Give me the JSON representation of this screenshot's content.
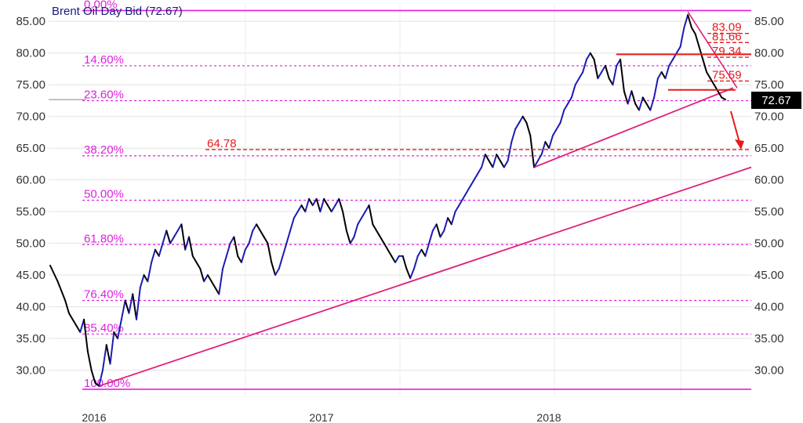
{
  "chart_data": {
    "type": "line",
    "title": "Brent Oil Day Bid (72.67)",
    "ylim": [
      26,
      87.5
    ],
    "y_ticks": [
      "85.00",
      "80.00",
      "75.00",
      "70.00",
      "65.00",
      "60.00",
      "55.00",
      "50.00",
      "45.00",
      "40.00",
      "35.00",
      "30.00"
    ],
    "y_tick_values": [
      85,
      80,
      75,
      70,
      65,
      60,
      55,
      50,
      45,
      40,
      35,
      30
    ],
    "x_labels": [
      "2016",
      "2017",
      "2018"
    ],
    "last_price": "72.67",
    "series": [
      {
        "points": [
          [
            0,
            46.5
          ],
          [
            2,
            44
          ],
          [
            4,
            41
          ],
          [
            5,
            39
          ],
          [
            6,
            38
          ],
          [
            7,
            37
          ],
          [
            8,
            36
          ],
          [
            9,
            38
          ],
          [
            10,
            33
          ],
          [
            11,
            30
          ],
          [
            12,
            28
          ],
          [
            13,
            27.5
          ],
          [
            14,
            30
          ],
          [
            15,
            34
          ],
          [
            16,
            31
          ],
          [
            17,
            36
          ],
          [
            18,
            35
          ],
          [
            19,
            38
          ],
          [
            20,
            41
          ],
          [
            21,
            39
          ],
          [
            22,
            42
          ],
          [
            23,
            38
          ],
          [
            24,
            43
          ],
          [
            25,
            45
          ],
          [
            26,
            44
          ],
          [
            27,
            47
          ],
          [
            28,
            49
          ],
          [
            29,
            48
          ],
          [
            30,
            50
          ],
          [
            31,
            52
          ],
          [
            32,
            50
          ],
          [
            33,
            51
          ],
          [
            34,
            52
          ],
          [
            35,
            53
          ],
          [
            36,
            49
          ],
          [
            37,
            51
          ],
          [
            38,
            48
          ],
          [
            39,
            47
          ],
          [
            40,
            46
          ],
          [
            41,
            44
          ],
          [
            42,
            45
          ],
          [
            43,
            44
          ],
          [
            44,
            43
          ],
          [
            45,
            42
          ],
          [
            46,
            46
          ],
          [
            47,
            48
          ],
          [
            48,
            50
          ],
          [
            49,
            51
          ],
          [
            50,
            48
          ],
          [
            51,
            47
          ],
          [
            52,
            49
          ],
          [
            53,
            50
          ],
          [
            54,
            52
          ],
          [
            55,
            53
          ],
          [
            56,
            52
          ],
          [
            57,
            51
          ],
          [
            58,
            50
          ],
          [
            59,
            47
          ],
          [
            60,
            45
          ],
          [
            61,
            46
          ],
          [
            62,
            48
          ],
          [
            63,
            50
          ],
          [
            64,
            52
          ],
          [
            65,
            54
          ],
          [
            66,
            55
          ],
          [
            67,
            56
          ],
          [
            68,
            55
          ],
          [
            69,
            57
          ],
          [
            70,
            56
          ],
          [
            71,
            57
          ],
          [
            72,
            55
          ],
          [
            73,
            57
          ],
          [
            74,
            56
          ],
          [
            75,
            55
          ],
          [
            76,
            56
          ],
          [
            77,
            57
          ],
          [
            78,
            55
          ],
          [
            79,
            52
          ],
          [
            80,
            50
          ],
          [
            81,
            51
          ],
          [
            82,
            53
          ],
          [
            83,
            54
          ],
          [
            84,
            55
          ],
          [
            85,
            56
          ],
          [
            86,
            53
          ],
          [
            87,
            52
          ],
          [
            88,
            51
          ],
          [
            89,
            50
          ],
          [
            90,
            49
          ],
          [
            91,
            48
          ],
          [
            92,
            47
          ],
          [
            93,
            48
          ],
          [
            94,
            48
          ],
          [
            95,
            46
          ],
          [
            96,
            44.5
          ],
          [
            97,
            46
          ],
          [
            98,
            48
          ],
          [
            99,
            49
          ],
          [
            100,
            48
          ],
          [
            101,
            50
          ],
          [
            102,
            52
          ],
          [
            103,
            53
          ],
          [
            104,
            51
          ],
          [
            105,
            52
          ],
          [
            106,
            54
          ],
          [
            107,
            53
          ],
          [
            108,
            55
          ],
          [
            109,
            56
          ],
          [
            110,
            57
          ],
          [
            111,
            58
          ],
          [
            112,
            59
          ],
          [
            113,
            60
          ],
          [
            114,
            61
          ],
          [
            115,
            62
          ],
          [
            116,
            64
          ],
          [
            117,
            63
          ],
          [
            118,
            62
          ],
          [
            119,
            64
          ],
          [
            120,
            63
          ],
          [
            121,
            62
          ],
          [
            122,
            63
          ],
          [
            123,
            66
          ],
          [
            124,
            68
          ],
          [
            125,
            69
          ],
          [
            126,
            70
          ],
          [
            127,
            69
          ],
          [
            128,
            67
          ],
          [
            129,
            62
          ],
          [
            130,
            63
          ],
          [
            131,
            64
          ],
          [
            132,
            66
          ],
          [
            133,
            65
          ],
          [
            134,
            67
          ],
          [
            135,
            68
          ],
          [
            136,
            69
          ],
          [
            137,
            71
          ],
          [
            138,
            72
          ],
          [
            139,
            73
          ],
          [
            140,
            75
          ],
          [
            141,
            76
          ],
          [
            142,
            77
          ],
          [
            143,
            79
          ],
          [
            144,
            80
          ],
          [
            145,
            79
          ],
          [
            146,
            76
          ],
          [
            147,
            77
          ],
          [
            148,
            78
          ],
          [
            149,
            76
          ],
          [
            150,
            75
          ],
          [
            151,
            78
          ],
          [
            152,
            79
          ],
          [
            153,
            74
          ],
          [
            154,
            72
          ],
          [
            155,
            74
          ],
          [
            156,
            72
          ],
          [
            157,
            71
          ],
          [
            158,
            73
          ],
          [
            159,
            72
          ],
          [
            160,
            71
          ],
          [
            161,
            73
          ],
          [
            162,
            76
          ],
          [
            163,
            77
          ],
          [
            164,
            76
          ],
          [
            165,
            78
          ],
          [
            166,
            79
          ],
          [
            167,
            80
          ],
          [
            168,
            81
          ],
          [
            169,
            84
          ],
          [
            170,
            86
          ],
          [
            171,
            84
          ],
          [
            172,
            83
          ],
          [
            173,
            81
          ],
          [
            174,
            79
          ],
          [
            175,
            77
          ],
          [
            176,
            76
          ],
          [
            177,
            75
          ],
          [
            178,
            74
          ],
          [
            179,
            73
          ],
          [
            180,
            72.67
          ]
        ]
      }
    ],
    "fib_levels": [
      {
        "label": "0.00%",
        "value": 86.7
      },
      {
        "label": "14.60%",
        "value": 78.0
      },
      {
        "label": "23.60%",
        "value": 72.5
      },
      {
        "label": "38.20%",
        "value": 63.8
      },
      {
        "label": "50.00%",
        "value": 56.8
      },
      {
        "label": "61.80%",
        "value": 49.8
      },
      {
        "label": "76.40%",
        "value": 41.0
      },
      {
        "label": "85.40%",
        "value": 35.7
      },
      {
        "label": "100.00%",
        "value": 27.0
      }
    ],
    "price_levels": [
      {
        "label": "83.09",
        "value": 83.09
      },
      {
        "label": "81.66",
        "value": 81.66
      },
      {
        "label": "79.34",
        "value": 79.34
      },
      {
        "label": "75.59",
        "value": 75.59
      },
      {
        "label": "64.78",
        "value": 64.78
      }
    ],
    "grid": true,
    "colors": {
      "series_up": "#1c1cb4",
      "series_down": "#000000",
      "fib": "#e020e0",
      "trend": "#e0207c",
      "red": "#e41b1b",
      "price_tag_bg": "#000000"
    }
  }
}
